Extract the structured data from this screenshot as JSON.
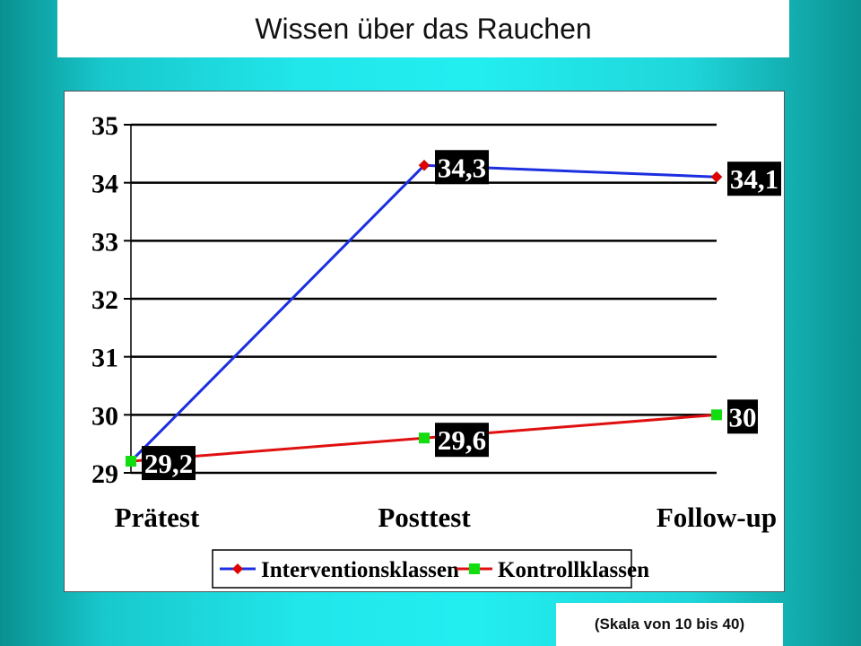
{
  "header": {
    "title": "Wissen über das Rauchen"
  },
  "footer": {
    "note": "(Skala von 10 bis 40)"
  },
  "colors": {
    "intervention": "#1c2fe0",
    "intervention_marker": "#e00000",
    "control": "#e01010",
    "control_marker": "#11dd11",
    "label_bg": "#000000",
    "label_text": "#ffffff"
  },
  "chart_data": {
    "type": "line",
    "categories": [
      "Prätest",
      "Posttest",
      "Follow-up"
    ],
    "ylim": [
      29,
      35
    ],
    "yticks": [
      "29",
      "30",
      "31",
      "32",
      "33",
      "34",
      "35"
    ],
    "grid": true,
    "legend_position": "bottom",
    "series": [
      {
        "name": "Interventionsklassen",
        "values": [
          29.2,
          34.3,
          34.1
        ],
        "labels": [
          "",
          "34,3",
          "34,1"
        ],
        "marker": "diamond"
      },
      {
        "name": "Kontrollklassen",
        "values": [
          29.2,
          29.6,
          30
        ],
        "labels": [
          "29,2",
          "29,6",
          "30"
        ],
        "marker": "square"
      }
    ]
  }
}
